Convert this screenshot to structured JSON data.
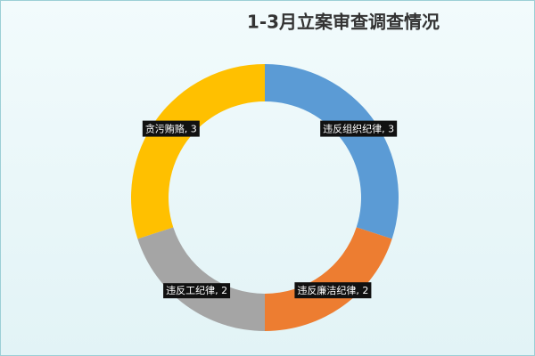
{
  "chart_data": {
    "type": "donut",
    "title": "1-3月立案审查调查情况",
    "categories": [
      "违反组织纪律",
      "违反廉洁纪律",
      "违反工纪律",
      "贪污贿赂"
    ],
    "values": [
      3,
      2,
      2,
      3
    ],
    "value_labels": [
      "违反组织纪律, 3",
      "违反廉洁纪律, 2",
      "违反工纪律, 2",
      "贪污贿赂, 3"
    ],
    "colors": [
      "#5b9bd5",
      "#ed7d31",
      "#a5a5a5",
      "#ffc000"
    ]
  }
}
